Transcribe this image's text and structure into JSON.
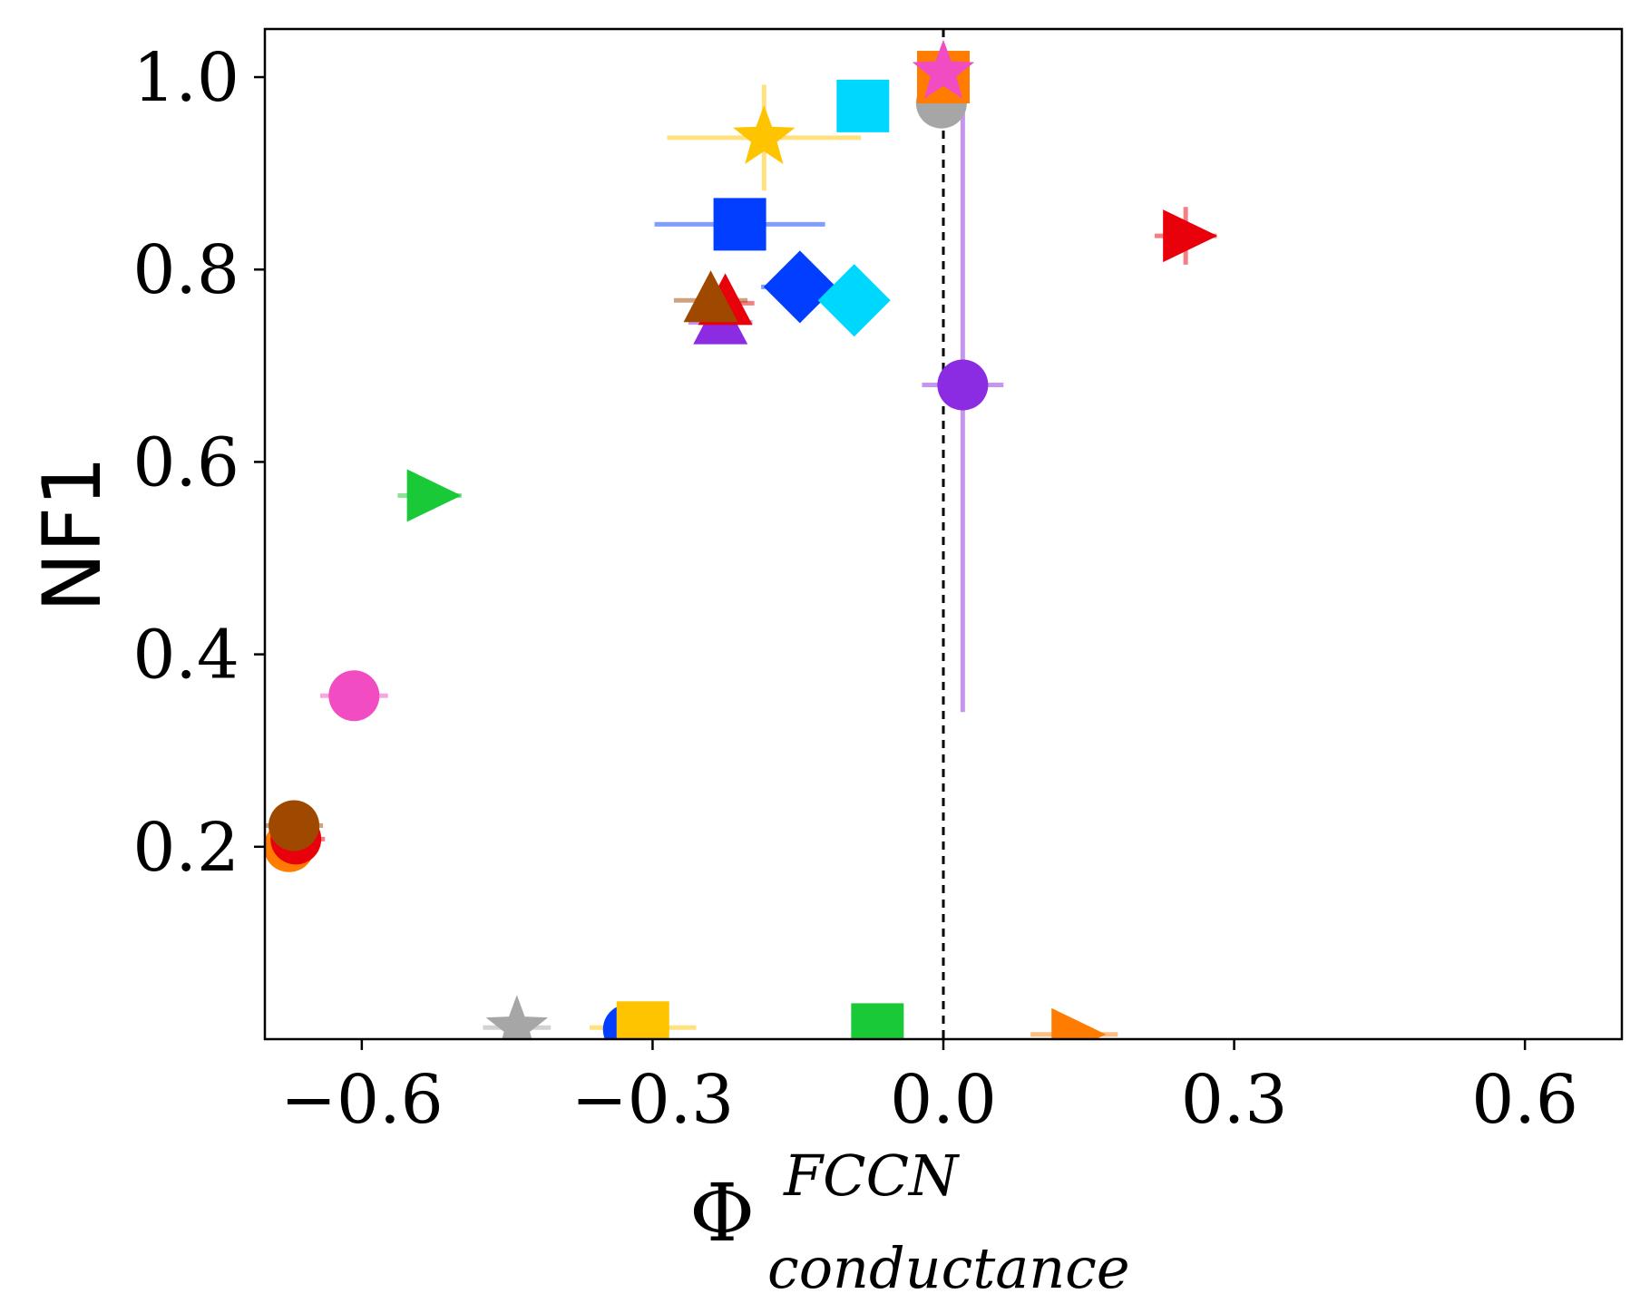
{
  "chart_data": {
    "type": "scatter",
    "title": "",
    "xlabel": {
      "base": "Φ",
      "superscript": "FCCN",
      "subscript": "conductance"
    },
    "ylabel": "NF1",
    "xlim": [
      -0.7,
      0.7
    ],
    "ylim": [
      0.0,
      1.05
    ],
    "xticks": [
      -0.6,
      -0.3,
      0.0,
      0.3,
      0.6
    ],
    "xtick_labels": [
      "−0.6",
      "−0.3",
      "0.0",
      "0.3",
      "0.6"
    ],
    "yticks": [
      0.2,
      0.4,
      0.6,
      0.8,
      1.0
    ],
    "ytick_labels": [
      "0.2",
      "0.4",
      "0.6",
      "0.8",
      "1.0"
    ],
    "reference_line": {
      "orientation": "vertical",
      "x": 0.0,
      "style": "dashed",
      "color": "#000000"
    },
    "grid": false,
    "points": [
      {
        "x": -0.185,
        "y": 0.937,
        "xerr": 0.1,
        "yerr": 0.055,
        "marker": "star",
        "color": "#ffc400"
      },
      {
        "x": -0.083,
        "y": 0.97,
        "xerr": 0,
        "yerr": 0,
        "marker": "square",
        "color": "#00d7ff"
      },
      {
        "x": -0.002,
        "y": 0.973,
        "xerr": 0,
        "yerr": 0,
        "marker": "circle",
        "color": "#a6a6a6"
      },
      {
        "x": 0.0,
        "y": 1.0,
        "xerr": 0,
        "yerr": 0,
        "marker": "square",
        "color": "#ff7c00"
      },
      {
        "x": 0.0,
        "y": 1.005,
        "xerr": 0,
        "yerr": 0,
        "marker": "star",
        "color": "#f14cc1"
      },
      {
        "x": -0.21,
        "y": 0.847,
        "xerr": 0.088,
        "yerr": 0,
        "marker": "square",
        "color": "#023eff"
      },
      {
        "x": 0.25,
        "y": 0.835,
        "xerr": 0.032,
        "yerr": 0.03,
        "marker": "triangle-right",
        "color": "#e8000b"
      },
      {
        "x": -0.148,
        "y": 0.782,
        "xerr": 0.04,
        "yerr": 0,
        "marker": "diamond",
        "color": "#023eff"
      },
      {
        "x": -0.092,
        "y": 0.768,
        "xerr": 0,
        "yerr": 0,
        "marker": "diamond",
        "color": "#00d7ff"
      },
      {
        "x": -0.23,
        "y": 0.745,
        "xerr": 0.033,
        "yerr": 0,
        "marker": "triangle-up",
        "color": "#8b2be2"
      },
      {
        "x": -0.225,
        "y": 0.765,
        "xerr": 0.03,
        "yerr": 0,
        "marker": "triangle-up",
        "color": "#e8000b"
      },
      {
        "x": -0.24,
        "y": 0.768,
        "xerr": 0.038,
        "yerr": 0,
        "marker": "triangle-up",
        "color": "#9f4800"
      },
      {
        "x": 0.02,
        "y": 0.68,
        "xerr": 0.042,
        "yerr": 0.34,
        "marker": "circle",
        "color": "#8b2be2"
      },
      {
        "x": -0.53,
        "y": 0.565,
        "xerr": 0.033,
        "yerr": 0,
        "marker": "triangle-right",
        "color": "#1ac938"
      },
      {
        "x": -0.608,
        "y": 0.357,
        "xerr": 0.035,
        "yerr": 0,
        "marker": "circle",
        "color": "#f14cc1"
      },
      {
        "x": -0.675,
        "y": 0.2,
        "xerr": 0,
        "yerr": 0,
        "marker": "circle",
        "color": "#ff7c00"
      },
      {
        "x": -0.668,
        "y": 0.208,
        "xerr": 0.03,
        "yerr": 0,
        "marker": "circle",
        "color": "#e8000b"
      },
      {
        "x": -0.67,
        "y": 0.222,
        "xerr": 0.03,
        "yerr": 0,
        "marker": "circle",
        "color": "#9f4800"
      },
      {
        "x": -0.44,
        "y": 0.012,
        "xerr": 0.035,
        "yerr": 0,
        "marker": "star",
        "color": "#a6a6a6"
      },
      {
        "x": -0.325,
        "y": 0.01,
        "xerr": 0,
        "yerr": 0,
        "marker": "circle",
        "color": "#023eff"
      },
      {
        "x": -0.31,
        "y": 0.012,
        "xerr": 0.055,
        "yerr": 0,
        "marker": "square",
        "color": "#ffc400"
      },
      {
        "x": -0.068,
        "y": 0.01,
        "xerr": 0,
        "yerr": 0,
        "marker": "square",
        "color": "#1ac938"
      },
      {
        "x": 0.135,
        "y": 0.005,
        "xerr": 0.045,
        "yerr": 0,
        "marker": "triangle-right",
        "color": "#ff7c00"
      }
    ]
  }
}
